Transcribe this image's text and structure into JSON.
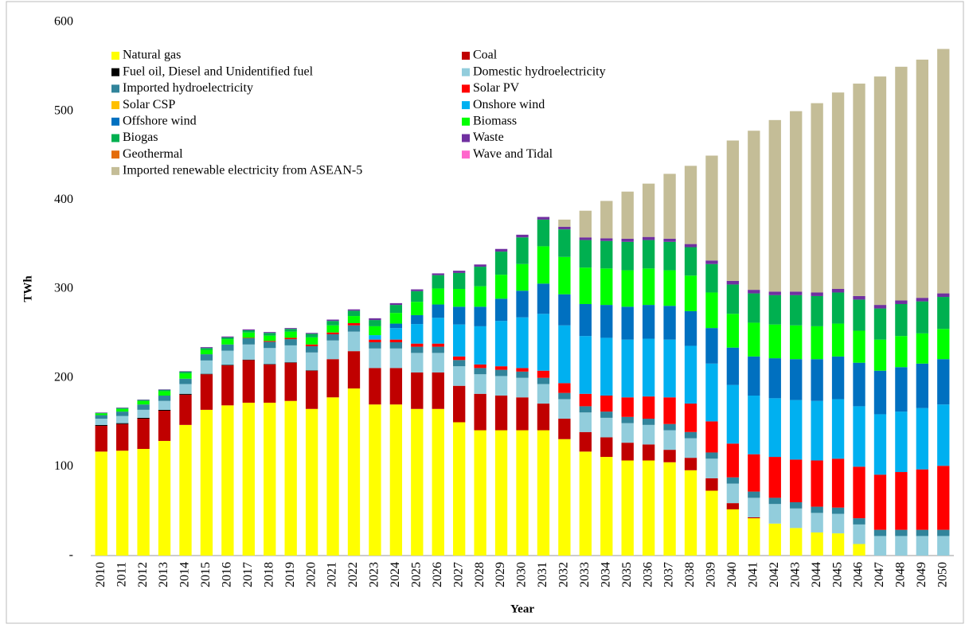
{
  "chart_data": {
    "type": "stacked_bar",
    "y_label": "TWh",
    "x_label": "Year",
    "categories": [
      "2010",
      "2011",
      "2012",
      "2013",
      "2014",
      "2015",
      "2016",
      "2017",
      "2018",
      "2019",
      "2020",
      "2021",
      "2022",
      "2023",
      "2024",
      "2025",
      "2026",
      "2027",
      "2028",
      "2029",
      "2030",
      "2031",
      "2032",
      "2033",
      "2034",
      "2035",
      "2036",
      "2037",
      "2038",
      "2039",
      "2040",
      "2041",
      "2042",
      "2043",
      "2044",
      "2045",
      "2046",
      "2047",
      "2048",
      "2049",
      "2050"
    ],
    "ylim": [
      0,
      600
    ],
    "yticks": [
      {
        "value": 0,
        "label": "-"
      },
      100,
      200,
      300,
      400,
      500,
      600
    ],
    "legend": "top-left",
    "series": [
      {
        "name": "Natural gas",
        "color": "#ffff00",
        "values": [
          117,
          118,
          120,
          129,
          147,
          164,
          169,
          172,
          172,
          174,
          165,
          178,
          188,
          170,
          170,
          165,
          165,
          150,
          141,
          141,
          141,
          141,
          131,
          117,
          111,
          107,
          107,
          105,
          96,
          73,
          52,
          42,
          36,
          31,
          26,
          25,
          13,
          0,
          0,
          0,
          0
        ]
      },
      {
        "name": "Coal",
        "color": "#c00000",
        "values": [
          29,
          30,
          34,
          34,
          34,
          40,
          45,
          48,
          43,
          43,
          43,
          43,
          42,
          41,
          41,
          41,
          41,
          41,
          41,
          39,
          37,
          30,
          23,
          22,
          22,
          20,
          18,
          14,
          14,
          14,
          7,
          1,
          0,
          0,
          0,
          0,
          0,
          0,
          0,
          0,
          0
        ]
      },
      {
        "name": "Fuel oil, Diesel and Unidentified fuel",
        "color": "#000000",
        "values": [
          1,
          1,
          1,
          1,
          1,
          0.5,
          0.5,
          0.5,
          0.5,
          0.5,
          0.5,
          0,
          0,
          0,
          0,
          0,
          0,
          0,
          0,
          0,
          0,
          0,
          0,
          0,
          0,
          0,
          0,
          0,
          0,
          0,
          0,
          0,
          0,
          0,
          0,
          0,
          0,
          0,
          0,
          0,
          0
        ]
      },
      {
        "name": "Domestic hydroelectricity",
        "color": "#92cddc",
        "values": [
          7,
          8,
          9,
          10,
          11,
          15,
          16,
          17,
          18,
          19,
          20,
          21,
          22,
          22,
          22,
          22,
          22,
          22,
          22,
          22,
          22,
          22,
          22,
          22,
          22,
          22,
          22,
          22,
          22,
          22,
          22,
          22,
          22,
          22,
          22,
          22,
          22,
          22,
          22,
          22,
          22
        ]
      },
      {
        "name": "Imported hydroelectricity",
        "color": "#31849b",
        "values": [
          4,
          5,
          6,
          6,
          6,
          7,
          7,
          7,
          7,
          7,
          7,
          7,
          7,
          7,
          7,
          7,
          7,
          7,
          7,
          7,
          7,
          7,
          7,
          7,
          7,
          7,
          7,
          7,
          7,
          7,
          7,
          7,
          7,
          7,
          7,
          7,
          7,
          7,
          7,
          7,
          7
        ]
      },
      {
        "name": "Solar PV",
        "color": "#ff0000",
        "values": [
          0,
          0,
          0,
          0,
          0,
          0,
          0,
          0.5,
          1,
          1.5,
          2,
          2,
          2.5,
          3,
          3,
          3.5,
          3.5,
          4,
          4,
          4,
          4,
          8,
          11,
          14,
          18,
          22,
          25,
          30,
          32,
          35,
          38,
          42,
          46,
          48,
          52,
          55,
          58,
          62,
          65,
          68,
          72
        ]
      },
      {
        "name": "Solar CSP",
        "color": "#ffc000",
        "values": [
          0,
          0,
          0,
          0,
          0,
          0,
          0,
          0,
          0,
          0,
          0,
          0,
          0,
          0,
          0,
          0,
          0,
          0,
          0,
          0,
          0,
          0,
          0,
          0,
          0,
          0,
          0,
          0,
          0,
          0,
          0,
          0,
          0,
          0,
          0,
          0,
          0,
          0,
          0,
          0,
          0
        ]
      },
      {
        "name": "Onshore wind",
        "color": "#00b0f0",
        "values": [
          0,
          0,
          0,
          0,
          0,
          0,
          0,
          0,
          0,
          0,
          0,
          0,
          0,
          5,
          13,
          22,
          29,
          36,
          43,
          51,
          57,
          64,
          65,
          65,
          65,
          65,
          65,
          65,
          65,
          65,
          66,
          66,
          66,
          67,
          67,
          67,
          68,
          68,
          68,
          69,
          69
        ]
      },
      {
        "name": "Offshore wind",
        "color": "#0070c0",
        "values": [
          0,
          0,
          0,
          0,
          0,
          0,
          0,
          0,
          0,
          0,
          0,
          0,
          0,
          0,
          5,
          10,
          15,
          20,
          22,
          25,
          30,
          34,
          35,
          36,
          37,
          37,
          38,
          38,
          39,
          40,
          42,
          44,
          45,
          46,
          47,
          48,
          49,
          49,
          50,
          50,
          51
        ]
      },
      {
        "name": "Biomass",
        "color": "#00ff00",
        "values": [
          2,
          3,
          4,
          5,
          6,
          5,
          6,
          6,
          6,
          7,
          8,
          8,
          8,
          10,
          12,
          15,
          18,
          20,
          23,
          27,
          30,
          42,
          42,
          41,
          41,
          41,
          41,
          40,
          40,
          40,
          38,
          38,
          38,
          38,
          37,
          37,
          36,
          35,
          35,
          34,
          34
        ]
      },
      {
        "name": "Biogas",
        "color": "#00b050",
        "values": [
          0.5,
          1,
          1,
          1.5,
          2,
          2,
          2,
          2.5,
          3,
          3,
          4,
          5,
          6,
          7,
          9,
          12,
          15,
          18,
          22,
          26,
          30,
          30,
          31,
          31,
          31,
          32,
          32,
          32,
          32,
          32,
          33,
          33,
          33,
          34,
          34,
          35,
          35,
          35,
          36,
          36,
          36
        ]
      },
      {
        "name": "Waste",
        "color": "#7030a0",
        "values": [
          0.5,
          0.5,
          0.5,
          0.5,
          0.5,
          1,
          1,
          1,
          1,
          1,
          1,
          1.5,
          1.5,
          2,
          2,
          2,
          2,
          2.5,
          2.5,
          3,
          3,
          3,
          3,
          3,
          3,
          3.5,
          3.5,
          3.5,
          3.5,
          4,
          4,
          4,
          4,
          4,
          4,
          4,
          4,
          4,
          4,
          4,
          4
        ]
      },
      {
        "name": "Geothermal",
        "color": "#e46c0a",
        "values": [
          0,
          0,
          0,
          0,
          0,
          0,
          0,
          0,
          0,
          0,
          0,
          0,
          0,
          0,
          0,
          0,
          0,
          0,
          0,
          0,
          0,
          0,
          0,
          0,
          0,
          0,
          0,
          0,
          0,
          0,
          0,
          0,
          0,
          0,
          0,
          0,
          0,
          0,
          0,
          0,
          0
        ]
      },
      {
        "name": "Wave and Tidal",
        "color": "#ff66cc",
        "values": [
          0,
          0,
          0,
          0,
          0,
          0,
          0,
          0,
          0,
          0,
          0,
          0,
          0,
          0,
          0,
          0,
          0,
          0,
          0,
          0,
          0,
          0,
          0,
          0,
          0,
          0,
          0,
          0,
          0,
          0,
          0,
          0,
          0,
          0,
          0,
          0,
          0,
          0,
          0,
          0,
          0
        ]
      },
      {
        "name": "Imported renewable electricity from ASEAN-5",
        "color": "#c4bd97",
        "values": [
          0,
          0,
          0,
          0,
          0,
          0,
          0,
          0,
          0,
          0,
          0,
          0,
          0,
          0,
          0,
          0,
          0,
          0,
          0,
          0,
          0,
          0,
          8,
          30,
          42,
          53,
          60,
          73,
          88,
          118,
          158,
          179,
          193,
          203,
          213,
          221,
          239,
          257,
          263,
          268,
          275
        ]
      }
    ]
  }
}
